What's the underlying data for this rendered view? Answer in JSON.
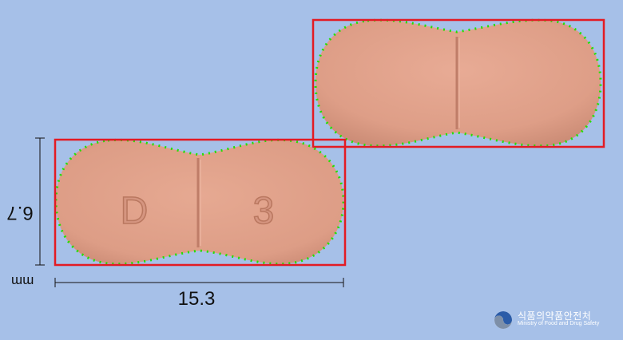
{
  "dimensions": {
    "width_mm": "15.3",
    "height_mm": "6.7",
    "unit": "mm"
  },
  "imprint": {
    "front_left": "D",
    "front_right": "3"
  },
  "pill": {
    "color": "#e2a38c",
    "shadow_color": "#c78672",
    "score_line_color": "#bf7d68"
  },
  "detection": {
    "box_color": "#e31b23",
    "contour_color": "#22e000"
  },
  "logo": {
    "name_ko": "식품의약품안전처",
    "name_en": "Ministry of Food and Drug Safety"
  },
  "colors": {
    "background": "#a6c0e8",
    "dimension_line": "#111111"
  }
}
